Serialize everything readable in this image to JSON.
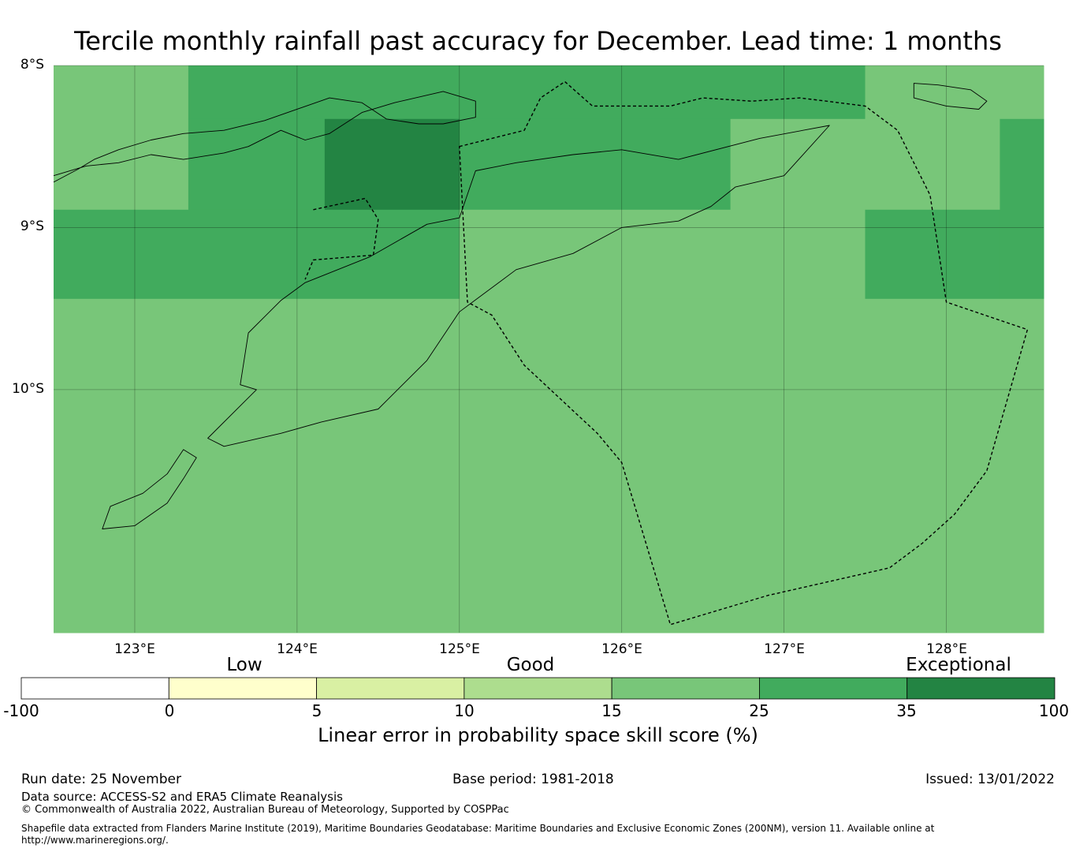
{
  "title": "Tercile monthly rainfall past accuracy for December. Lead time: 1 months",
  "map": {
    "lat_labels": [
      "8°S",
      "9°S",
      "10°S"
    ],
    "lon_labels": [
      "123°E",
      "124°E",
      "125°E",
      "126°E",
      "127°E",
      "128°E"
    ],
    "lon_range": [
      122.5,
      128.6
    ],
    "lat_range": [
      -11.5,
      -8.0
    ],
    "grid_lons": [
      123,
      124,
      125,
      126,
      127,
      128
    ],
    "grid_lats": [
      -8,
      -9,
      -10
    ],
    "skill_cells": [
      {
        "lon": [
          122.5,
          123.33
        ],
        "lat": [
          -8.0,
          -8.89
        ],
        "class": "15-25"
      },
      {
        "lon": [
          123.33,
          124.17
        ],
        "lat": [
          -8.0,
          -8.33
        ],
        "class": "25-35"
      },
      {
        "lon": [
          124.17,
          125.0
        ],
        "lat": [
          -8.0,
          -8.33
        ],
        "class": "25-35"
      },
      {
        "lon": [
          125.0,
          127.5
        ],
        "lat": [
          -8.0,
          -8.33
        ],
        "class": "25-35"
      },
      {
        "lon": [
          127.5,
          128.6
        ],
        "lat": [
          -8.0,
          -8.33
        ],
        "class": "15-25"
      },
      {
        "lon": [
          123.33,
          124.17
        ],
        "lat": [
          -8.33,
          -8.89
        ],
        "class": "25-35"
      },
      {
        "lon": [
          124.17,
          125.0
        ],
        "lat": [
          -8.33,
          -8.89
        ],
        "class": "35-100"
      },
      {
        "lon": [
          125.0,
          126.67
        ],
        "lat": [
          -8.33,
          -8.89
        ],
        "class": "25-35"
      },
      {
        "lon": [
          126.67,
          128.33
        ],
        "lat": [
          -8.33,
          -8.89
        ],
        "class": "15-25"
      },
      {
        "lon": [
          128.33,
          128.6
        ],
        "lat": [
          -8.33,
          -9.44
        ],
        "class": "25-35"
      },
      {
        "lon": [
          122.5,
          125.0
        ],
        "lat": [
          -8.89,
          -9.44
        ],
        "class": "25-35"
      },
      {
        "lon": [
          125.0,
          127.5
        ],
        "lat": [
          -8.89,
          -9.44
        ],
        "class": "15-25"
      },
      {
        "lon": [
          127.5,
          128.33
        ],
        "lat": [
          -8.89,
          -9.44
        ],
        "class": "25-35"
      },
      {
        "lon": [
          122.5,
          128.6
        ],
        "lat": [
          -9.44,
          -11.5
        ],
        "class": "15-25"
      }
    ],
    "eez_boundary": [
      [
        125.0,
        -8.5
      ],
      [
        125.4,
        -8.4
      ],
      [
        125.5,
        -8.2
      ],
      [
        125.65,
        -8.1
      ],
      [
        125.82,
        -8.25
      ],
      [
        126.3,
        -8.25
      ],
      [
        126.5,
        -8.2
      ],
      [
        126.8,
        -8.22
      ],
      [
        127.1,
        -8.2
      ],
      [
        127.5,
        -8.25
      ],
      [
        127.7,
        -8.4
      ],
      [
        127.9,
        -8.8
      ],
      [
        128.0,
        -9.46
      ],
      [
        128.5,
        -9.63
      ],
      [
        128.25,
        -10.5
      ],
      [
        128.05,
        -10.77
      ],
      [
        127.85,
        -10.95
      ],
      [
        127.65,
        -11.1
      ],
      [
        126.9,
        -11.27
      ],
      [
        126.3,
        -11.45
      ],
      [
        126.0,
        -10.45
      ],
      [
        125.85,
        -10.27
      ],
      [
        125.4,
        -9.85
      ],
      [
        125.2,
        -9.54
      ],
      [
        125.05,
        -9.46
      ]
    ],
    "timor_coast": [
      [
        124.05,
        -9.34
      ],
      [
        124.45,
        -9.18
      ],
      [
        124.8,
        -8.98
      ],
      [
        125.0,
        -8.94
      ],
      [
        125.1,
        -8.65
      ],
      [
        125.35,
        -8.6
      ],
      [
        125.7,
        -8.55
      ],
      [
        126.0,
        -8.52
      ],
      [
        126.35,
        -8.58
      ],
      [
        126.85,
        -8.45
      ],
      [
        127.28,
        -8.37
      ],
      [
        127.0,
        -8.68
      ],
      [
        126.7,
        -8.75
      ],
      [
        126.55,
        -8.87
      ],
      [
        126.35,
        -8.96
      ],
      [
        126.0,
        -9.0
      ],
      [
        125.7,
        -9.16
      ],
      [
        125.35,
        -9.26
      ],
      [
        125.0,
        -9.52
      ],
      [
        124.8,
        -9.82
      ],
      [
        124.5,
        -10.12
      ],
      [
        124.15,
        -10.2
      ],
      [
        123.9,
        -10.27
      ],
      [
        123.55,
        -10.35
      ],
      [
        123.45,
        -10.3
      ],
      [
        123.75,
        -10.0
      ],
      [
        123.65,
        -9.97
      ],
      [
        123.7,
        -9.65
      ],
      [
        123.8,
        -9.55
      ],
      [
        123.9,
        -9.45
      ],
      [
        124.05,
        -9.34
      ]
    ],
    "oecusse_boundary": [
      [
        124.1,
        -8.89
      ],
      [
        124.42,
        -8.82
      ],
      [
        124.5,
        -8.95
      ],
      [
        124.47,
        -9.17
      ],
      [
        124.1,
        -9.2
      ],
      [
        124.05,
        -9.32
      ]
    ],
    "flores_coast": [
      [
        122.5,
        -8.72
      ],
      [
        122.65,
        -8.64
      ],
      [
        122.75,
        -8.58
      ],
      [
        122.9,
        -8.52
      ],
      [
        123.1,
        -8.46
      ],
      [
        123.3,
        -8.42
      ],
      [
        123.55,
        -8.4
      ],
      [
        123.8,
        -8.34
      ],
      [
        124.2,
        -8.2
      ],
      [
        124.4,
        -8.23
      ],
      [
        124.55,
        -8.33
      ],
      [
        124.75,
        -8.36
      ],
      [
        124.9,
        -8.36
      ],
      [
        125.1,
        -8.32
      ],
      [
        125.1,
        -8.22
      ],
      [
        124.9,
        -8.16
      ],
      [
        124.6,
        -8.23
      ],
      [
        124.4,
        -8.29
      ],
      [
        124.2,
        -8.42
      ],
      [
        124.05,
        -8.46
      ],
      [
        123.9,
        -8.4
      ],
      [
        123.7,
        -8.5
      ],
      [
        123.55,
        -8.54
      ],
      [
        123.3,
        -8.58
      ],
      [
        123.1,
        -8.55
      ],
      [
        122.9,
        -8.6
      ],
      [
        122.7,
        -8.62
      ],
      [
        122.5,
        -8.68
      ]
    ],
    "rote_savu_coast": [
      [
        123.3,
        -10.37
      ],
      [
        123.2,
        -10.52
      ],
      [
        123.05,
        -10.64
      ],
      [
        122.85,
        -10.72
      ],
      [
        122.8,
        -10.86
      ],
      [
        123.0,
        -10.84
      ],
      [
        123.2,
        -10.7
      ],
      [
        123.3,
        -10.55
      ],
      [
        123.38,
        -10.42
      ],
      [
        123.3,
        -10.37
      ]
    ],
    "wetar_coast": [
      [
        127.8,
        -8.11
      ],
      [
        127.95,
        -8.12
      ],
      [
        128.15,
        -8.15
      ],
      [
        128.25,
        -8.22
      ],
      [
        128.2,
        -8.27
      ],
      [
        128.0,
        -8.25
      ],
      [
        127.8,
        -8.2
      ],
      [
        127.8,
        -8.11
      ]
    ]
  },
  "colorbar": {
    "category_labels": {
      "low": "Low",
      "good": "Good",
      "exceptional": "Exceptional"
    },
    "ticks": [
      "-100",
      "0",
      "5",
      "10",
      "15",
      "25",
      "35",
      "100"
    ],
    "colors": [
      "#ffffff",
      "#ffffcc",
      "#d9f0a3",
      "#addd8e",
      "#78c679",
      "#41ab5d",
      "#238443"
    ],
    "label": "Linear error in probability space skill score (%)"
  },
  "class_colors": {
    "15-25": "#78c679",
    "25-35": "#41ab5d",
    "35-100": "#238443"
  },
  "footer": {
    "run_date": "Run date: 25 November",
    "base_period": "Base period: 1981-2018",
    "issued": "Issued: 13/01/2022",
    "data_source": "Data source: ACCESS-S2 and ERA5 Climate Reanalysis",
    "copyright": "© Commonwealth of Australia 2022, Australian Bureau of Meteorology, Supported by COSPPac",
    "shapefile_line1": "Shapefile data extracted from Flanders Marine Institute (2019), Maritime Boundaries Geodatabase: Maritime Boundaries and Exclusive Economic Zones (200NM), version 11. Available online at",
    "shapefile_line2": "http://www.marineregions.org/."
  }
}
